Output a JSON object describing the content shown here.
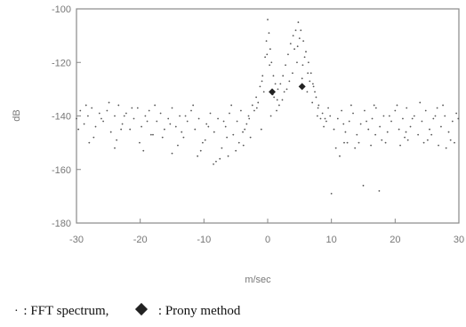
{
  "chart_data": {
    "type": "scatter",
    "title": "",
    "xlabel": "m/sec",
    "ylabel": "dB",
    "xlim": [
      -30,
      30
    ],
    "ylim": [
      -180,
      -100
    ],
    "xticks": [
      -30,
      -20,
      -10,
      0,
      10,
      20,
      30
    ],
    "yticks": [
      -100,
      -120,
      -140,
      -160,
      -180
    ],
    "grid": false,
    "series": [
      {
        "name": "FFT spectrum",
        "marker": "dot",
        "color": "#555555",
        "points": [
          [
            -30.0,
            -141
          ],
          [
            -29.4,
            -138
          ],
          [
            -28.8,
            -143
          ],
          [
            -28.2,
            -140
          ],
          [
            -27.6,
            -137
          ],
          [
            -27.0,
            -144
          ],
          [
            -26.4,
            -139
          ],
          [
            -25.8,
            -142
          ],
          [
            -25.2,
            -138
          ],
          [
            -24.6,
            -146
          ],
          [
            -24.0,
            -140
          ],
          [
            -23.4,
            -136
          ],
          [
            -22.8,
            -143
          ],
          [
            -22.2,
            -139
          ],
          [
            -21.6,
            -145
          ],
          [
            -21.0,
            -141
          ],
          [
            -20.4,
            -137
          ],
          [
            -19.8,
            -144
          ],
          [
            -19.2,
            -140
          ],
          [
            -18.6,
            -138
          ],
          [
            -18.0,
            -147
          ],
          [
            -17.4,
            -142
          ],
          [
            -16.8,
            -139
          ],
          [
            -16.2,
            -145
          ],
          [
            -15.6,
            -141
          ],
          [
            -15.0,
            -137
          ],
          [
            -14.4,
            -144
          ],
          [
            -13.8,
            -140
          ],
          [
            -13.2,
            -148
          ],
          [
            -12.6,
            -142
          ],
          [
            -12.0,
            -138
          ],
          [
            -11.4,
            -145
          ],
          [
            -10.8,
            -141
          ],
          [
            -10.2,
            -150
          ],
          [
            -9.6,
            -143
          ],
          [
            -9.0,
            -139
          ],
          [
            -8.4,
            -146
          ],
          [
            -7.8,
            -141
          ],
          [
            -7.2,
            -152
          ],
          [
            -6.6,
            -144
          ],
          [
            -6.0,
            -139
          ],
          [
            -5.4,
            -147
          ],
          [
            -4.8,
            -142
          ],
          [
            -4.2,
            -138
          ],
          [
            -3.6,
            -145
          ],
          [
            -3.0,
            -140
          ],
          [
            -2.4,
            -136
          ],
          [
            -1.8,
            -133
          ],
          [
            -1.2,
            -129
          ],
          [
            -0.8,
            -125
          ],
          [
            -0.4,
            -118
          ],
          [
            -0.2,
            -112
          ],
          [
            0.0,
            -104
          ],
          [
            0.2,
            -109
          ],
          [
            0.4,
            -115
          ],
          [
            0.6,
            -120
          ],
          [
            0.9,
            -125
          ],
          [
            1.2,
            -128
          ],
          [
            1.6,
            -130
          ],
          [
            2.0,
            -128
          ],
          [
            2.4,
            -125
          ],
          [
            2.8,
            -121
          ],
          [
            3.2,
            -117
          ],
          [
            3.6,
            -113
          ],
          [
            4.0,
            -110
          ],
          [
            4.4,
            -108
          ],
          [
            4.8,
            -105
          ],
          [
            5.2,
            -108
          ],
          [
            5.6,
            -112
          ],
          [
            6.0,
            -116
          ],
          [
            6.4,
            -120
          ],
          [
            6.8,
            -124
          ],
          [
            7.2,
            -129
          ],
          [
            7.6,
            -133
          ],
          [
            8.0,
            -136
          ],
          [
            8.6,
            -139
          ],
          [
            9.2,
            -142
          ],
          [
            9.8,
            -140
          ],
          [
            10.4,
            -145
          ],
          [
            11.0,
            -141
          ],
          [
            11.6,
            -138
          ],
          [
            12.2,
            -146
          ],
          [
            12.8,
            -142
          ],
          [
            13.4,
            -139
          ],
          [
            14.0,
            -147
          ],
          [
            14.6,
            -143
          ],
          [
            15.2,
            -138
          ],
          [
            15.8,
            -145
          ],
          [
            16.4,
            -141
          ],
          [
            17.0,
            -137
          ],
          [
            17.6,
            -144
          ],
          [
            18.2,
            -140
          ],
          [
            18.8,
            -146
          ],
          [
            19.4,
            -142
          ],
          [
            20.0,
            -138
          ],
          [
            20.6,
            -145
          ],
          [
            21.2,
            -141
          ],
          [
            21.8,
            -137
          ],
          [
            22.4,
            -144
          ],
          [
            23.0,
            -140
          ],
          [
            23.6,
            -147
          ],
          [
            24.2,
            -142
          ],
          [
            24.8,
            -138
          ],
          [
            25.4,
            -145
          ],
          [
            26.0,
            -141
          ],
          [
            26.6,
            -137
          ],
          [
            27.2,
            -144
          ],
          [
            27.8,
            -140
          ],
          [
            28.4,
            -146
          ],
          [
            29.0,
            -142
          ],
          [
            29.6,
            -139
          ],
          [
            -29.7,
            -145
          ],
          [
            -28.5,
            -136
          ],
          [
            -27.3,
            -148
          ],
          [
            -26.1,
            -141
          ],
          [
            -24.9,
            -135
          ],
          [
            -23.7,
            -149
          ],
          [
            -22.5,
            -140
          ],
          [
            -21.3,
            -137
          ],
          [
            -20.1,
            -150
          ],
          [
            -18.9,
            -142
          ],
          [
            -17.7,
            -136
          ],
          [
            -16.5,
            -148
          ],
          [
            -15.3,
            -143
          ],
          [
            -14.1,
            -151
          ],
          [
            -12.9,
            -140
          ],
          [
            -11.7,
            -136
          ],
          [
            -10.5,
            -153
          ],
          [
            -9.3,
            -144
          ],
          [
            -8.1,
            -157
          ],
          [
            -6.9,
            -142
          ],
          [
            -5.7,
            -136
          ],
          [
            -4.5,
            -150
          ],
          [
            -3.3,
            -143
          ],
          [
            -2.1,
            -138
          ],
          [
            -1.5,
            -135
          ],
          [
            -0.6,
            -131
          ],
          [
            1.0,
            -133
          ],
          [
            1.8,
            -136
          ],
          [
            3.0,
            -130
          ],
          [
            4.2,
            -115
          ],
          [
            5.0,
            -111
          ],
          [
            5.8,
            -118
          ],
          [
            6.6,
            -127
          ],
          [
            7.4,
            -131
          ],
          [
            8.3,
            -141
          ],
          [
            9.5,
            -137
          ],
          [
            10.7,
            -152
          ],
          [
            11.9,
            -143
          ],
          [
            13.1,
            -136
          ],
          [
            14.3,
            -150
          ],
          [
            15.5,
            -142
          ],
          [
            16.7,
            -136
          ],
          [
            17.9,
            -149
          ],
          [
            19.1,
            -140
          ],
          [
            20.3,
            -136
          ],
          [
            21.5,
            -148
          ],
          [
            22.7,
            -141
          ],
          [
            23.9,
            -135
          ],
          [
            25.1,
            -149
          ],
          [
            26.3,
            -140
          ],
          [
            27.5,
            -136
          ],
          [
            28.7,
            -149
          ],
          [
            29.9,
            -141
          ],
          [
            -28.0,
            -150
          ],
          [
            -24.0,
            -152
          ],
          [
            -19.5,
            -153
          ],
          [
            -15.0,
            -154
          ],
          [
            -11.0,
            -155
          ],
          [
            -8.5,
            -158
          ],
          [
            -7.5,
            -156
          ],
          [
            -6.2,
            -155
          ],
          [
            -5.0,
            -153
          ],
          [
            -3.8,
            -151
          ],
          [
            -2.7,
            -148
          ],
          [
            -1.0,
            -145
          ],
          [
            0.5,
            -140
          ],
          [
            1.4,
            -138
          ],
          [
            2.3,
            -134
          ],
          [
            3.4,
            -127
          ],
          [
            4.6,
            -120
          ],
          [
            5.4,
            -126
          ],
          [
            6.2,
            -131
          ],
          [
            7.0,
            -135
          ],
          [
            7.8,
            -140
          ],
          [
            8.8,
            -144
          ],
          [
            10.0,
            -169
          ],
          [
            11.3,
            -155
          ],
          [
            12.5,
            -150
          ],
          [
            13.7,
            -152
          ],
          [
            15.0,
            -166
          ],
          [
            16.2,
            -151
          ],
          [
            17.5,
            -168
          ],
          [
            18.5,
            -150
          ],
          [
            20.8,
            -151
          ],
          [
            22.0,
            -149
          ],
          [
            24.5,
            -150
          ],
          [
            26.8,
            -151
          ],
          [
            28.0,
            -152
          ],
          [
            29.3,
            -150
          ],
          [
            -23.0,
            -145
          ],
          [
            -18.3,
            -147
          ],
          [
            -13.5,
            -146
          ],
          [
            -9.8,
            -149
          ],
          [
            -6.4,
            -148
          ],
          [
            -3.9,
            -146
          ],
          [
            -2.9,
            -141
          ],
          [
            -1.7,
            -137
          ],
          [
            -0.9,
            -127
          ],
          [
            -0.1,
            -117
          ],
          [
            0.3,
            -121
          ],
          [
            0.8,
            -132
          ],
          [
            1.5,
            -134
          ],
          [
            2.6,
            -131
          ],
          [
            3.9,
            -124
          ],
          [
            4.7,
            -114
          ],
          [
            5.5,
            -121
          ],
          [
            6.3,
            -124
          ],
          [
            7.1,
            -128
          ],
          [
            7.9,
            -137
          ],
          [
            9.0,
            -141
          ],
          [
            12.0,
            -150
          ],
          [
            16.9,
            -147
          ],
          [
            21.7,
            -146
          ],
          [
            25.7,
            -147
          ]
        ]
      },
      {
        "name": "Prony method",
        "marker": "diamond",
        "color": "#222222",
        "points": [
          [
            0.7,
            -131
          ],
          [
            5.4,
            -129
          ]
        ]
      }
    ]
  },
  "legend": {
    "fft_symbol": "·",
    "fft_label": ": FFT spectrum,",
    "prony_label": ": Prony method"
  }
}
